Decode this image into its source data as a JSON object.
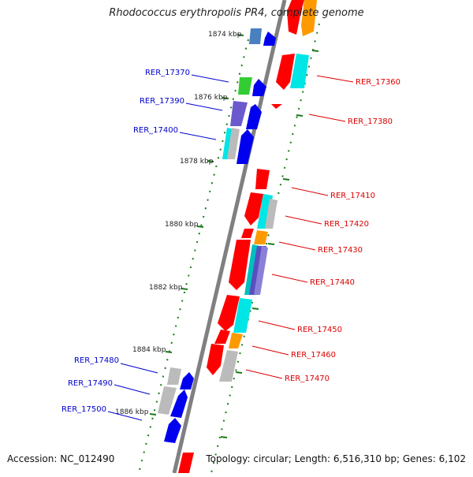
{
  "title": "Rhodococcus erythropolis PR4, complete genome",
  "footer": {
    "accession": "Accession: NC_012490",
    "stats": "Topology: circular; Length: 6,516,310 bp; Genes: 6,102"
  },
  "colors": {
    "backbone": "#808080",
    "tick": "#1a7a1a",
    "left_label": "#0000cc",
    "right_label": "#dd0000"
  },
  "ruler_labels": [
    "1874 kbp",
    "1876 kbp",
    "1878 kbp",
    "1880 kbp",
    "1882 kbp",
    "1884 kbp",
    "1886 kbp"
  ],
  "left_genes": [
    "RER_17370",
    "RER_17390",
    "RER_17400",
    "RER_17480",
    "RER_17490",
    "RER_17500"
  ],
  "right_genes": [
    "RER_17360",
    "RER_17380",
    "RER_17410",
    "RER_17420",
    "RER_17430",
    "RER_17440",
    "RER_17450",
    "RER_17460",
    "RER_17470"
  ]
}
